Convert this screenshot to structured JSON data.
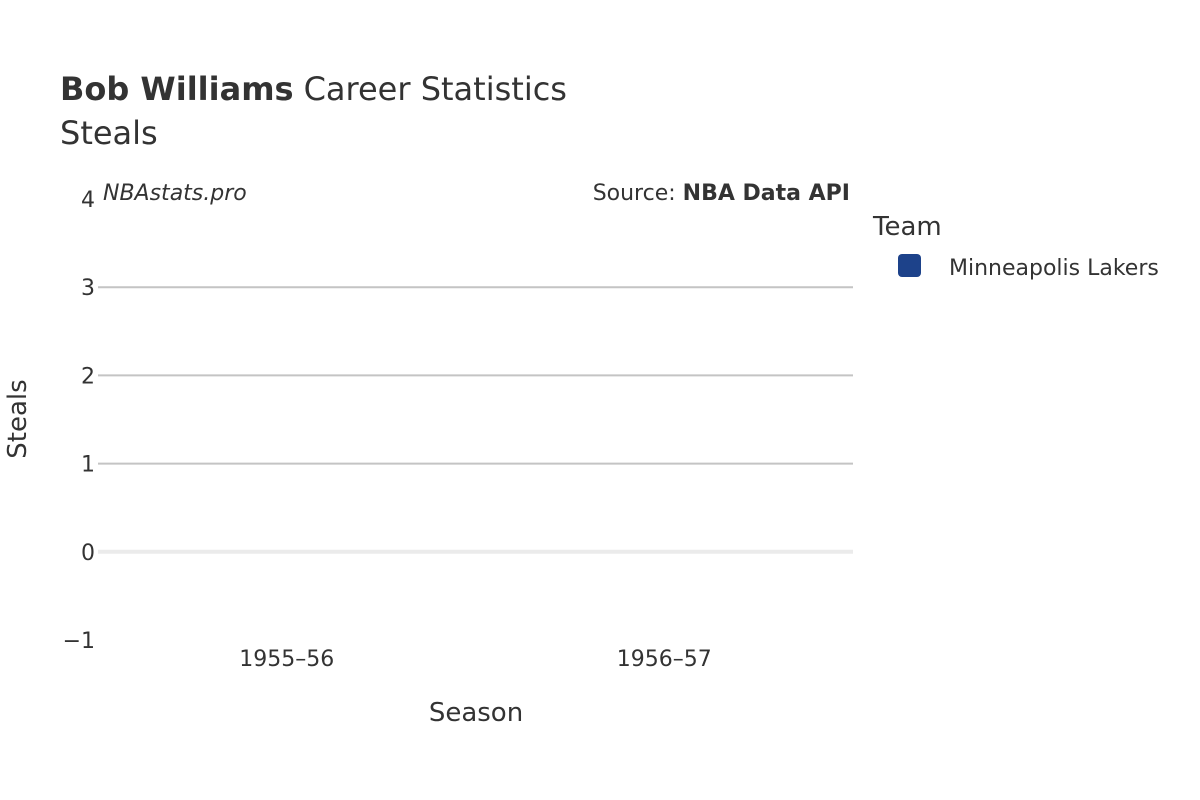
{
  "chart_data": {
    "type": "bar",
    "title_bold": "Bob Williams",
    "title_rest": "Career Statistics",
    "subtitle": "Steals",
    "watermark": "NBAstats.pro",
    "source_prefix": "Source: ",
    "source_name": "NBA Data API",
    "xlabel": "Season",
    "ylabel": "Steals",
    "categories": [
      "1955–56",
      "1956–57"
    ],
    "ylim": [
      -1,
      4
    ],
    "yticks": [
      -1,
      0,
      1,
      2,
      3,
      4
    ],
    "ytick_labels": [
      "−1",
      "0",
      "1",
      "2",
      "3",
      "4"
    ],
    "grid": true,
    "legend": {
      "title": "Team",
      "placement": "right",
      "entries": [
        {
          "name": "Minneapolis Lakers",
          "color": "#1d428a"
        }
      ]
    },
    "series": [
      {
        "name": "Minneapolis Lakers",
        "color": "#1d428a",
        "values": [
          null,
          null
        ]
      }
    ]
  }
}
